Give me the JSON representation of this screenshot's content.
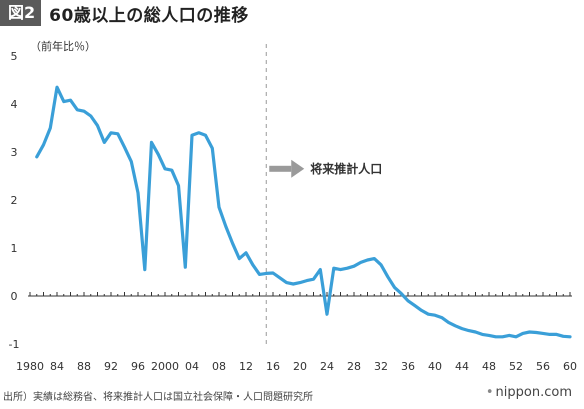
{
  "figure": {
    "badge": "図2",
    "title": "60歳以上の総人口の推移"
  },
  "source": "出所）実績は総務省、将来推計人口は国立社会保障・人口問題研究所",
  "brand": "nippon.com",
  "colors": {
    "line": "#3a9fd8",
    "axis": "#333333",
    "divider": "#999999",
    "arrow": "#9a9a9a"
  },
  "chart_data": {
    "type": "line",
    "ylabel": "（前年比％）",
    "ylim": [
      -1,
      5
    ],
    "yticks": [
      5,
      4,
      3,
      2,
      1,
      0,
      -1
    ],
    "xlim": [
      1980,
      2060
    ],
    "xtick_labels": [
      {
        "x": 1980,
        "label": "1980"
      },
      {
        "x": 1984,
        "label": "84"
      },
      {
        "x": 1988,
        "label": "88"
      },
      {
        "x": 1992,
        "label": "92"
      },
      {
        "x": 1996,
        "label": "96"
      },
      {
        "x": 2000,
        "label": "2000"
      },
      {
        "x": 2004,
        "label": "04"
      },
      {
        "x": 2008,
        "label": "08"
      },
      {
        "x": 2012,
        "label": "12"
      },
      {
        "x": 2016,
        "label": "16"
      },
      {
        "x": 2020,
        "label": "20"
      },
      {
        "x": 2024,
        "label": "24"
      },
      {
        "x": 2028,
        "label": "28"
      },
      {
        "x": 2032,
        "label": "32"
      },
      {
        "x": 2036,
        "label": "36"
      },
      {
        "x": 2040,
        "label": "40"
      },
      {
        "x": 2044,
        "label": "44"
      },
      {
        "x": 2048,
        "label": "48"
      },
      {
        "x": 2052,
        "label": "52"
      },
      {
        "x": 2056,
        "label": "56"
      },
      {
        "x": 2060,
        "label": "60"
      }
    ],
    "divider_x": 2015,
    "annotation": "将来推計人口",
    "series": [
      {
        "x": [
          1981,
          1982,
          1983,
          1984,
          1985,
          1986,
          1987,
          1988,
          1989,
          1990,
          1991,
          1992,
          1993,
          1994,
          1995,
          1996,
          1997,
          1998,
          1999,
          2000,
          2001,
          2002,
          2003,
          2004,
          2005,
          2006,
          2007,
          2008,
          2009,
          2010,
          2011,
          2012,
          2013,
          2014,
          2015,
          2016,
          2017,
          2018,
          2019,
          2020,
          2021,
          2022,
          2023,
          2024,
          2025,
          2026,
          2027,
          2028,
          2029,
          2030,
          2031,
          2032,
          2033,
          2034,
          2035,
          2036,
          2037,
          2038,
          2039,
          2040,
          2041,
          2042,
          2043,
          2044,
          2045,
          2046,
          2047,
          2048,
          2049,
          2050,
          2051,
          2052,
          2053,
          2054,
          2055,
          2056,
          2057,
          2058,
          2059,
          2060
        ],
        "values": [
          2.9,
          3.15,
          3.5,
          4.35,
          4.05,
          4.08,
          3.88,
          3.85,
          3.75,
          3.55,
          3.2,
          3.4,
          3.38,
          3.1,
          2.8,
          2.15,
          0.55,
          3.2,
          2.95,
          2.65,
          2.62,
          2.3,
          0.6,
          3.35,
          3.4,
          3.35,
          3.08,
          1.85,
          1.45,
          1.1,
          0.78,
          0.9,
          0.65,
          0.45,
          0.47,
          0.48,
          0.38,
          0.28,
          0.25,
          0.28,
          0.32,
          0.35,
          0.55,
          -0.38,
          0.58,
          0.55,
          0.58,
          0.62,
          0.7,
          0.75,
          0.78,
          0.65,
          0.4,
          0.18,
          0.05,
          -0.1,
          -0.2,
          -0.3,
          -0.38,
          -0.4,
          -0.45,
          -0.55,
          -0.62,
          -0.68,
          -0.72,
          -0.75,
          -0.8,
          -0.82,
          -0.85,
          -0.85,
          -0.82,
          -0.85,
          -0.78,
          -0.75,
          -0.76,
          -0.78,
          -0.8,
          -0.8,
          -0.84,
          -0.85
        ]
      }
    ]
  }
}
